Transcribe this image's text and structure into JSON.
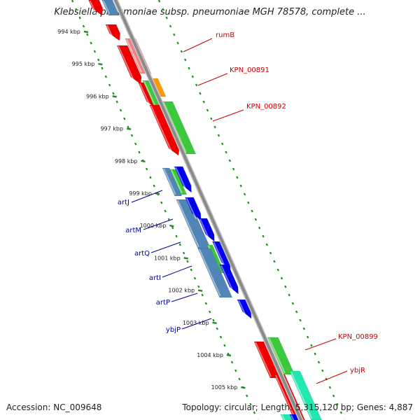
{
  "title": "Klebsiella pneumoniae subsp. pneumoniae MGH 78578, complete ...",
  "footer": {
    "accession": "Accession: NC_009648",
    "summary": "Topology: circular; Length: 5,315,120 bp; Genes: 4,887"
  },
  "colors": {
    "backbone": "#8a8a8a",
    "tick": "#2a8a2a",
    "forward_label": "#cc0000",
    "reverse_label": "#000099",
    "red": "#ee0000",
    "pink": "#f08080",
    "green": "#3cc83c",
    "orange": "#ff9900",
    "blue": "#0000ee",
    "steel": "#4f86b6",
    "mint": "#22e8b0"
  },
  "ticks": [
    {
      "label": "994 kbp"
    },
    {
      "label": "995 kbp"
    },
    {
      "label": "996 kbp"
    },
    {
      "label": "997 kbp"
    },
    {
      "label": "998 kbp"
    },
    {
      "label": "999 kbp"
    },
    {
      "label": "1000 kbp"
    },
    {
      "label": "1001 kbp"
    },
    {
      "label": "1002 kbp"
    },
    {
      "label": "1003 kbp"
    },
    {
      "label": "1004 kbp"
    },
    {
      "label": "1005 kbp"
    }
  ],
  "forward_labels": [
    "rumB",
    "KPN_00891",
    "KPN_00892",
    "KPN_00899",
    "ybjR"
  ],
  "reverse_labels": [
    "artJ",
    "artM",
    "artQ",
    "artI",
    "artP",
    "ybjP"
  ]
}
